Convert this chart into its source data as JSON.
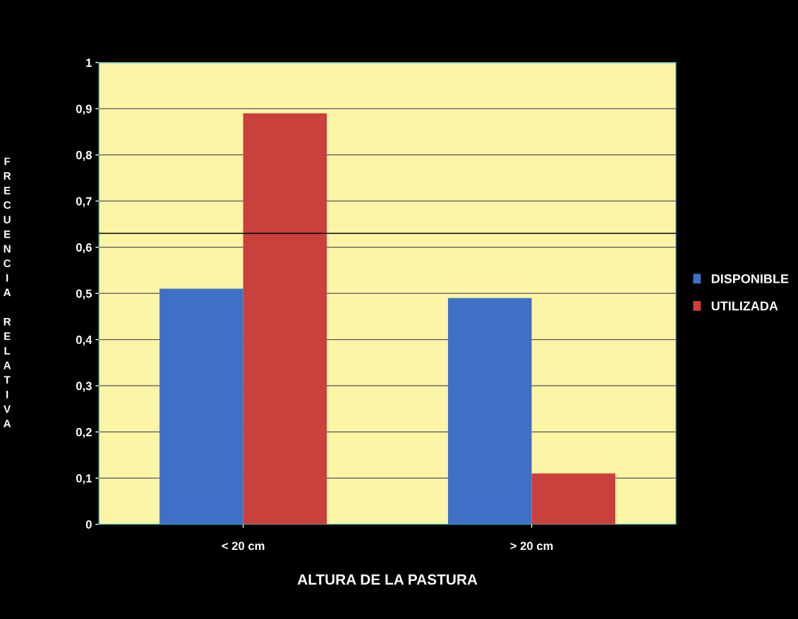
{
  "chart_data": {
    "type": "bar",
    "xlabel": "ALTURA DE LA PASTURA",
    "ylabel": "FRECUENCIA RELATIVA",
    "categories": [
      "< 20 cm",
      "> 20 cm"
    ],
    "series": [
      {
        "name": "DISPONIBLE",
        "color": "#3f70c6",
        "values": [
          0.51,
          0.49
        ]
      },
      {
        "name": "UTILIZADA",
        "color": "#c9403c",
        "values": [
          0.89,
          0.11
        ]
      }
    ],
    "ylim": [
      0,
      1
    ],
    "yticks": [
      0,
      {
        "value": 0.1,
        "label": "0,1"
      },
      {
        "value": 0.2,
        "label": "0,2"
      },
      {
        "value": 0.3,
        "label": "0,3"
      },
      {
        "value": 0.4,
        "label": "0,4"
      },
      {
        "value": 0.5,
        "label": "0,5"
      },
      {
        "value": 0.6,
        "label": "0,6"
      },
      {
        "value": 0.7,
        "label": "0,7"
      },
      {
        "value": 0.8,
        "label": "0,8"
      },
      {
        "value": 0.9,
        "label": "0,9"
      },
      1
    ],
    "ref_lines": [
      {
        "axis": "y",
        "value": 0.63,
        "color": "#000000",
        "line_style": "solid"
      }
    ],
    "grid": "y",
    "legend": "right"
  }
}
